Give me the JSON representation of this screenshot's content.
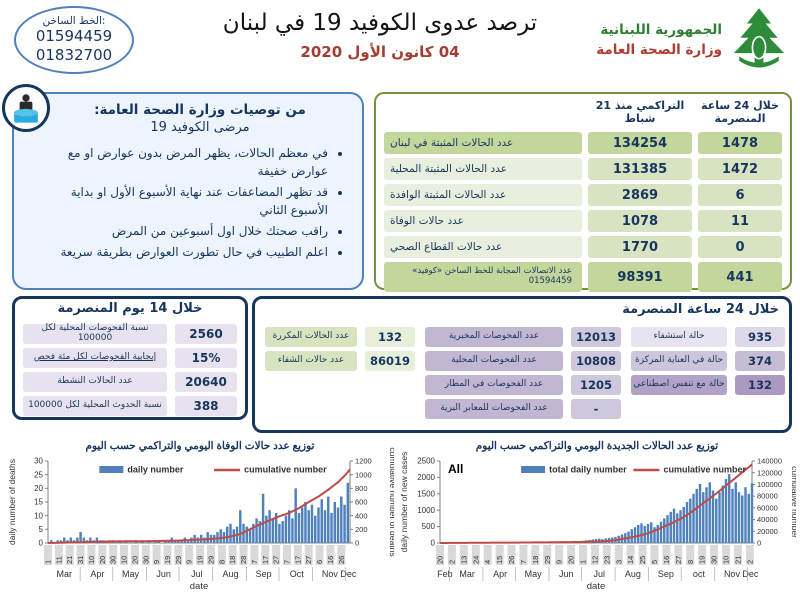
{
  "header": {
    "hotline": {
      "label": "الخط الساخن:",
      "numbers": [
        "01594459",
        "01832700"
      ]
    },
    "title": "ترصد عدوى الكوفيد 19 في لبنان",
    "date": "04 كانون الأول 2020",
    "logo": {
      "line1": "الجمهورية اللبنانية",
      "line2": "وزارة الصحة العامة"
    }
  },
  "recommendations": {
    "heading": "من توصيات وزارة الصحة العامة:",
    "subheading": "مرضى الكوفيد 19",
    "bullets": [
      "في معظم الحالات، يظهر المرض بدون عوارض او مع عوارض خفيفة",
      "قد تظهر المضاعفات عند نهاية الأسبوع الأول او بداية الأسبوع الثاني",
      "راقب صحتك خلال اول أسبوعين من المرض",
      "اعلم الطبيب في حال تطورت العوارض بطريقة سريعة"
    ]
  },
  "stats_table": {
    "col_24h": "خلال 24 ساعة المنصرمة",
    "col_cumulative": "التراكمي منذ 21 شباط",
    "rows": [
      {
        "label": "عدد الحالات المثبتة في لبنان",
        "cumulative": "134254",
        "last24h": "1478"
      },
      {
        "label": "عدد الحالات المثبتة المحلية",
        "cumulative": "131385",
        "last24h": "1472"
      },
      {
        "label": "عدد الحالات المثبتة الوافدة",
        "cumulative": "2869",
        "last24h": "6"
      },
      {
        "label": "عدد حالات الوفاة",
        "cumulative": "1078",
        "last24h": "11"
      },
      {
        "label": "عدد حالات القطاع الصحي",
        "cumulative": "1770",
        "last24h": "0"
      },
      {
        "label": "عدد الاتصالات المجابة للخط الساخن «كوفيد» 01594459",
        "cumulative": "98391",
        "last24h": "441"
      }
    ]
  },
  "last14days": {
    "heading": "خلال 14 يوم المنصرمة",
    "rows": [
      {
        "label": "نسبة الفحوصات المحلية لكل 100000",
        "value": "2560"
      },
      {
        "label": "إيجابية الفحوصات لكل مئة فحص",
        "value": "15%"
      },
      {
        "label": "عدد الحالات النشطة",
        "value": "20640"
      },
      {
        "label": "نسبة الحدوث المحلية لكل 100000",
        "value": "388"
      }
    ]
  },
  "last24h_panel": {
    "heading": "خلال 24 ساعة المنصرمة",
    "green_rows": [
      {
        "label": "عدد الحالات المكررة",
        "value": "132"
      },
      {
        "label": "عدد حالات الشفاء",
        "value": "86019"
      }
    ],
    "test_rows": [
      {
        "label": "عدد الفحوصات المخبرية",
        "value": "12013"
      },
      {
        "label": "عدد الفحوصات المحلية",
        "value": "10808"
      },
      {
        "label": "عدد الفحوصات في المطار",
        "value": "1205"
      },
      {
        "label": "عدد الفحوصات للمعابر البرية",
        "value": "-"
      }
    ],
    "hospital_rows": [
      {
        "label": "حالة استشفاء",
        "value": "935"
      },
      {
        "label": "حالة في العناية المركزة",
        "value": "374"
      },
      {
        "label": "حالة مع تنفس اصطناعي",
        "value": "132"
      }
    ]
  },
  "colors": {
    "bar_blue": "#4f81bd",
    "line_red": "#be4b48",
    "navy": "#17365d",
    "green_border": "#76923c",
    "green_cell": "#c3d69b",
    "purple_dark": "#b2a2c7",
    "date_red": "#a43e35",
    "logo_green": "#2f7d33",
    "logo_red": "#b23c33"
  },
  "chart_data": [
    {
      "type": "bar+line",
      "title": "توزيع عدد حالات الوفاة اليومي والتراكمي حسب اليوم",
      "corner_label": "",
      "legend": [
        "daily number",
        "cumulative number"
      ],
      "ylabel_left": "daily number of deaths",
      "ylabel_right": "cumulative number of deaths",
      "xlabel": "date",
      "ylim_left": [
        0,
        30
      ],
      "ytick_left": 5,
      "ylim_right": [
        0,
        1200
      ],
      "ytick_right": 200,
      "total_days": 279,
      "sample_step": 3,
      "bar_color": "#4f81bd",
      "line_color": "#be4b48",
      "daily_values": [
        0,
        1,
        0,
        1,
        1,
        2,
        1,
        2,
        1,
        2,
        4,
        2,
        1,
        2,
        1,
        2,
        1,
        1,
        0,
        1,
        1,
        0,
        1,
        0,
        1,
        0,
        0,
        1,
        0,
        1,
        0,
        1,
        0,
        1,
        1,
        0,
        1,
        1,
        2,
        1,
        1,
        1,
        2,
        1,
        2,
        3,
        2,
        3,
        2,
        4,
        3,
        3,
        4,
        5,
        4,
        6,
        7,
        5,
        6,
        12,
        7,
        6,
        5,
        7,
        9,
        8,
        18,
        10,
        12,
        9,
        11,
        7,
        8,
        10,
        12,
        9,
        20,
        11,
        13,
        15,
        12,
        14,
        10,
        13,
        16,
        12,
        17,
        11,
        15,
        13,
        17,
        14,
        22
      ],
      "cumulative_anchors": [
        [
          0,
          0
        ],
        [
          30,
          11
        ],
        [
          60,
          24
        ],
        [
          91,
          26
        ],
        [
          121,
          36
        ],
        [
          152,
          60
        ],
        [
          165,
          85
        ],
        [
          177,
          130
        ],
        [
          183,
          180
        ],
        [
          195,
          270
        ],
        [
          205,
          340
        ],
        [
          213,
          390
        ],
        [
          222,
          440
        ],
        [
          231,
          510
        ],
        [
          240,
          600
        ],
        [
          249,
          680
        ],
        [
          258,
          780
        ],
        [
          267,
          890
        ],
        [
          274,
          1000
        ],
        [
          278,
          1078
        ]
      ],
      "x_ticks": [
        [
          0,
          "1"
        ],
        [
          10,
          "11"
        ],
        [
          20,
          "21"
        ],
        [
          30,
          "31"
        ],
        [
          40,
          "10"
        ],
        [
          50,
          "20"
        ],
        [
          60,
          "30"
        ],
        [
          70,
          "10"
        ],
        [
          80,
          "20"
        ],
        [
          90,
          "30"
        ],
        [
          100,
          "9"
        ],
        [
          110,
          "19"
        ],
        [
          120,
          "29"
        ],
        [
          130,
          "9"
        ],
        [
          140,
          "19"
        ],
        [
          150,
          "29"
        ],
        [
          160,
          "8"
        ],
        [
          170,
          "18"
        ],
        [
          180,
          "28"
        ],
        [
          190,
          "7"
        ],
        [
          200,
          "17"
        ],
        [
          210,
          "27"
        ],
        [
          220,
          "7"
        ],
        [
          230,
          "17"
        ],
        [
          240,
          "27"
        ],
        [
          250,
          "6"
        ],
        [
          260,
          "16"
        ],
        [
          270,
          "26"
        ]
      ],
      "months": [
        [
          "Mar",
          0,
          30
        ],
        [
          "Apr",
          31,
          60
        ],
        [
          "May",
          61,
          91
        ],
        [
          "Jun",
          92,
          121
        ],
        [
          "Jul",
          122,
          152
        ],
        [
          "Aug",
          153,
          183
        ],
        [
          "Sep",
          184,
          213
        ],
        [
          "Oct",
          214,
          244
        ],
        [
          "Nov",
          245,
          274
        ],
        [
          "Dec",
          275,
          278
        ]
      ]
    },
    {
      "type": "bar+line",
      "title": "توزيع عدد الحالات الجديدة اليومي والتراكمي حسب اليوم",
      "corner_label": "All",
      "legend": [
        "total daily number",
        "cumulative number"
      ],
      "ylabel_left": "daily number of new cases",
      "ylabel_right": "cumulative number",
      "xlabel": "date",
      "ylim_left": [
        0,
        2500
      ],
      "ytick_left": 500,
      "ylim_right": [
        0,
        140000
      ],
      "ytick_right": 20000,
      "total_days": 289,
      "sample_step": 3,
      "bar_color": "#4f81bd",
      "line_color": "#be4b48",
      "daily_values": [
        2,
        1,
        2,
        3,
        4,
        6,
        8,
        10,
        12,
        8,
        10,
        12,
        9,
        7,
        6,
        5,
        8,
        6,
        10,
        12,
        8,
        6,
        5,
        8,
        10,
        12,
        15,
        10,
        8,
        12,
        10,
        15,
        20,
        18,
        15,
        12,
        18,
        25,
        30,
        22,
        28,
        35,
        45,
        55,
        65,
        80,
        95,
        110,
        125,
        135,
        120,
        140,
        155,
        170,
        185,
        220,
        260,
        300,
        350,
        420,
        480,
        550,
        600,
        520,
        580,
        630,
        480,
        550,
        650,
        750,
        850,
        950,
        1050,
        900,
        1000,
        1100,
        1250,
        1350,
        1500,
        1650,
        1800,
        1550,
        1700,
        1850,
        1600,
        1350,
        1550,
        1750,
        1950,
        2100,
        1650,
        1850,
        1550,
        1450,
        1700,
        1500,
        1820
      ],
      "cumulative_anchors": [
        [
          0,
          0
        ],
        [
          20,
          250
        ],
        [
          40,
          480
        ],
        [
          70,
          700
        ],
        [
          101,
          1200
        ],
        [
          131,
          1800
        ],
        [
          152,
          3000
        ],
        [
          162,
          4800
        ],
        [
          183,
          12000
        ],
        [
          193,
          17000
        ],
        [
          203,
          25000
        ],
        [
          213,
          33000
        ],
        [
          223,
          42000
        ],
        [
          233,
          54000
        ],
        [
          243,
          68000
        ],
        [
          254,
          83000
        ],
        [
          264,
          98000
        ],
        [
          274,
          113000
        ],
        [
          284,
          128000
        ],
        [
          288,
          134254
        ]
      ],
      "x_ticks": [
        [
          0,
          "20"
        ],
        [
          11,
          "2"
        ],
        [
          22,
          "13"
        ],
        [
          33,
          "24"
        ],
        [
          44,
          "4"
        ],
        [
          55,
          "15"
        ],
        [
          66,
          "26"
        ],
        [
          77,
          "7"
        ],
        [
          88,
          "18"
        ],
        [
          99,
          "29"
        ],
        [
          110,
          "9"
        ],
        [
          121,
          "20"
        ],
        [
          132,
          "1"
        ],
        [
          143,
          "12"
        ],
        [
          154,
          "23"
        ],
        [
          165,
          "3"
        ],
        [
          176,
          "14"
        ],
        [
          187,
          "25"
        ],
        [
          198,
          "5"
        ],
        [
          209,
          "16"
        ],
        [
          220,
          "27"
        ],
        [
          231,
          "8"
        ],
        [
          242,
          "19"
        ],
        [
          253,
          "30"
        ],
        [
          264,
          "10"
        ],
        [
          275,
          "21"
        ],
        [
          286,
          "2"
        ]
      ],
      "months": [
        [
          "Feb",
          0,
          9
        ],
        [
          "Mar",
          10,
          40
        ],
        [
          "Apr",
          41,
          70
        ],
        [
          "May",
          71,
          101
        ],
        [
          "Jun",
          102,
          131
        ],
        [
          "Jul",
          132,
          162
        ],
        [
          "Aug",
          163,
          193
        ],
        [
          "Sep",
          194,
          223
        ],
        [
          "oct",
          224,
          254
        ],
        [
          "Nov",
          255,
          284
        ],
        [
          "Dec",
          285,
          288
        ]
      ]
    }
  ]
}
